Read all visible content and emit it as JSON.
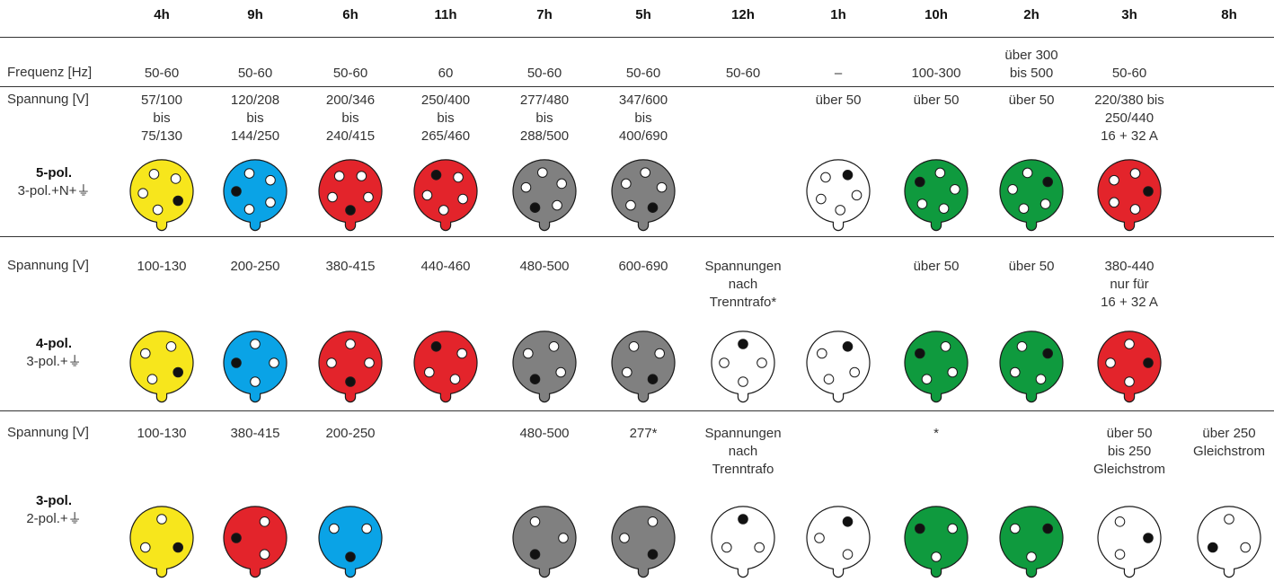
{
  "columns": [
    "4h",
    "9h",
    "6h",
    "11h",
    "7h",
    "5h",
    "12h",
    "1h",
    "10h",
    "2h",
    "3h",
    "8h"
  ],
  "frequency": {
    "label": "Frequenz [Hz]",
    "values": [
      "50-60",
      "50-60",
      "50-60",
      "60",
      "50-60",
      "50-60",
      "50-60",
      "–",
      "100-300",
      "über 300\nbis 500",
      "50-60",
      ""
    ]
  },
  "groups": [
    {
      "title": "5-pol.",
      "subtitle": "3-pol.+N+⏚",
      "voltage_label": "Spannung [V]",
      "voltages": [
        "57/100\nbis\n75/130",
        "120/208\nbis\n144/250",
        "200/346\nbis\n240/415",
        "250/400\nbis\n265/460",
        "277/480\nbis\n288/500",
        "347/600\nbis\n400/690",
        "",
        "über 50",
        "über 50",
        "über 50",
        "220/380 bis\n250/440\n16 + 32 A",
        ""
      ],
      "plugs": [
        {
          "color": "yellow",
          "pins": 5,
          "earth_hour": 4
        },
        {
          "color": "blue",
          "pins": 5,
          "earth_hour": 9
        },
        {
          "color": "red",
          "pins": 5,
          "earth_hour": 6
        },
        {
          "color": "red",
          "pins": 5,
          "earth_hour": 11
        },
        {
          "color": "gray",
          "pins": 5,
          "earth_hour": 7
        },
        {
          "color": "gray",
          "pins": 5,
          "earth_hour": 5
        },
        null,
        {
          "color": "white",
          "pins": 5,
          "earth_hour": 1
        },
        {
          "color": "green",
          "pins": 5,
          "earth_hour": 10
        },
        {
          "color": "green",
          "pins": 5,
          "earth_hour": 2
        },
        {
          "color": "red",
          "pins": 5,
          "earth_hour": 3
        },
        null
      ]
    },
    {
      "title": "4-pol.",
      "subtitle": "3-pol.+⏚",
      "voltage_label": "Spannung [V]",
      "voltages": [
        "100-130",
        "200-250",
        "380-415",
        "440-460",
        "480-500",
        "600-690",
        "Spannungen\nnach\nTrenntrafo*",
        "",
        "über 50",
        "über 50",
        "380-440\nnur für\n16 + 32 A",
        ""
      ],
      "plugs": [
        {
          "color": "yellow",
          "pins": 4,
          "earth_hour": 4
        },
        {
          "color": "blue",
          "pins": 4,
          "earth_hour": 9
        },
        {
          "color": "red",
          "pins": 4,
          "earth_hour": 6
        },
        {
          "color": "red",
          "pins": 4,
          "earth_hour": 11
        },
        {
          "color": "gray",
          "pins": 4,
          "earth_hour": 7
        },
        {
          "color": "gray",
          "pins": 4,
          "earth_hour": 5
        },
        {
          "color": "white",
          "pins": 4,
          "earth_hour": 12
        },
        {
          "color": "white",
          "pins": 4,
          "earth_hour": 1
        },
        {
          "color": "green",
          "pins": 4,
          "earth_hour": 10
        },
        {
          "color": "green",
          "pins": 4,
          "earth_hour": 2
        },
        {
          "color": "red",
          "pins": 4,
          "earth_hour": 3
        },
        null
      ]
    },
    {
      "title": "3-pol.",
      "subtitle": "2-pol.+⏚",
      "voltage_label": "Spannung [V]",
      "voltages": [
        "100-130",
        "380-415",
        "200-250",
        "",
        "480-500",
        "277*",
        "Spannungen\nnach\nTrenntrafo",
        "",
        "*",
        "",
        "über 50\nbis 250\nGleichstrom",
        "über 250\nGleichstrom"
      ],
      "plugs": [
        {
          "color": "yellow",
          "pins": 3,
          "earth_hour": 4
        },
        {
          "color": "red",
          "pins": 3,
          "earth_hour": 9
        },
        {
          "color": "blue",
          "pins": 3,
          "earth_hour": 6
        },
        null,
        {
          "color": "gray",
          "pins": 3,
          "earth_hour": 7
        },
        {
          "color": "gray",
          "pins": 3,
          "earth_hour": 5
        },
        {
          "color": "white",
          "pins": 3,
          "earth_hour": 12
        },
        {
          "color": "white",
          "pins": 3,
          "earth_hour": 1
        },
        {
          "color": "green",
          "pins": 3,
          "earth_hour": 10
        },
        {
          "color": "green",
          "pins": 3,
          "earth_hour": 2
        },
        {
          "color": "white",
          "pins": 3,
          "earth_hour": 3
        },
        {
          "color": "white",
          "pins": 3,
          "earth_hour": 8
        }
      ]
    }
  ],
  "colors": {
    "yellow": "#f7e61c",
    "blue": "#0aa3e6",
    "red": "#e3242b",
    "gray": "#808080",
    "green": "#0f9a3e",
    "white": "#ffffff"
  }
}
